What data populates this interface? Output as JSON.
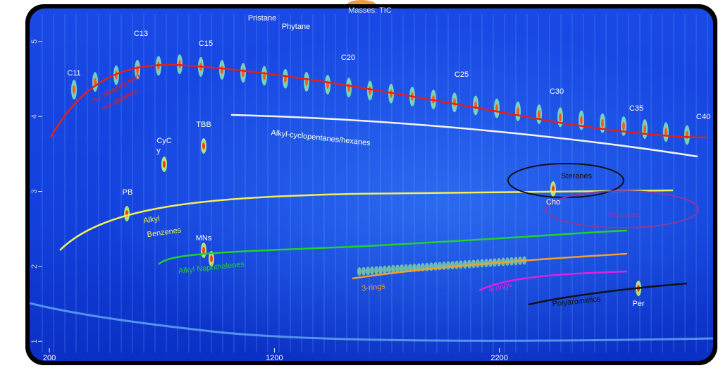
{
  "chart_data": {
    "type": "heatmap",
    "title": "Masses: TIC",
    "xlim": [
      112,
      3150
    ],
    "ylim": [
      0.74,
      5.44
    ],
    "xticks": [
      200,
      1200,
      2200
    ],
    "yticks": [
      1,
      2,
      3,
      4,
      5
    ],
    "annotations": [
      "C11",
      "C13",
      "C15",
      "Pristane",
      "Phytane",
      "C20",
      "C25",
      "C30",
      "C35",
      "C40",
      "CyC",
      "y",
      "TBB",
      "PB",
      "MNs",
      "Cho",
      "Per",
      "n-/ alkanes and",
      "iso-alkanes",
      "Alkyl-cyclopentanes/hexanes",
      "Steranes",
      "Hopanes",
      "Alkyl",
      "Benzenes",
      "Alkyl Naphthalenes",
      "3-rings",
      "4-rings",
      "Polyaromatics"
    ]
  }
}
